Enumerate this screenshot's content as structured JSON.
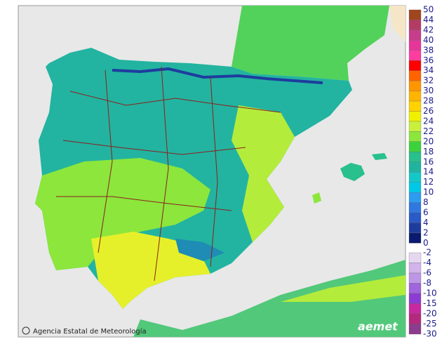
{
  "legend": {
    "warm": {
      "labels": [
        50,
        44,
        42,
        40,
        38,
        36,
        34,
        32,
        30,
        28,
        26,
        24,
        22,
        20,
        18,
        16,
        14,
        12,
        10,
        8,
        6,
        4,
        2,
        0
      ],
      "colors": [
        "#a0461e",
        "#b43c64",
        "#c83c8c",
        "#e6369b",
        "#ff3ca0",
        "#ff0000",
        "#ff6400",
        "#ff9600",
        "#ffb400",
        "#ffd200",
        "#f0f000",
        "#c8f03c",
        "#8ce63c",
        "#3cd23c",
        "#28c08c",
        "#20b4a0",
        "#14c8c8",
        "#00c8e6",
        "#2c9cf0",
        "#2e78e0",
        "#2a5ac8",
        "#1e3c9e",
        "#0a1a6e"
      ]
    },
    "cold": {
      "labels": [
        -2,
        -4,
        -6,
        -8,
        -10,
        -15,
        -20,
        -25,
        -30
      ],
      "colors": [
        "#e6d7f0",
        "#d2b4eb",
        "#be96e6",
        "#a064dc",
        "#8c3cd2",
        "#c828a0",
        "#b4287d",
        "#8c3c8c"
      ]
    }
  },
  "footer": {
    "agency": "Agencia Estatal de Meteorología",
    "logo": "aemet"
  }
}
